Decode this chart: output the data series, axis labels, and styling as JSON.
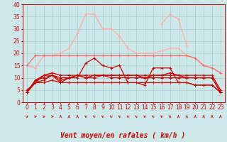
{
  "xlabel": "Vent moyen/en rafales ( km/h )",
  "x": [
    0,
    1,
    2,
    3,
    4,
    5,
    6,
    7,
    8,
    9,
    10,
    11,
    12,
    13,
    14,
    15,
    16,
    17,
    18,
    19,
    20,
    21,
    22,
    23
  ],
  "series": [
    {
      "color": "#ffaaaa",
      "lw": 0.9,
      "values": [
        15,
        14,
        19,
        19,
        20,
        22,
        28,
        36,
        36,
        30,
        30,
        27,
        22,
        20,
        20,
        20,
        21,
        22,
        22,
        19,
        18,
        15,
        14,
        12
      ]
    },
    {
      "color": "#ffaaaa",
      "lw": 0.9,
      "values": [
        null,
        null,
        null,
        null,
        null,
        null,
        null,
        null,
        null,
        null,
        null,
        null,
        null,
        null,
        null,
        null,
        32,
        36,
        34,
        23,
        null,
        null,
        null,
        null
      ]
    },
    {
      "color": "#ff6666",
      "lw": 0.9,
      "values": [
        15,
        19,
        19,
        19,
        19,
        19,
        19,
        19,
        19,
        19,
        19,
        19,
        19,
        19,
        19,
        19,
        19,
        19,
        19,
        19,
        18,
        15,
        14,
        12
      ]
    },
    {
      "color": "#cc0000",
      "lw": 0.9,
      "values": [
        4,
        8,
        11,
        11,
        8,
        10,
        10,
        16,
        18,
        15,
        14,
        15,
        8,
        8,
        7,
        14,
        14,
        14,
        8,
        8,
        7,
        7,
        7,
        4
      ]
    },
    {
      "color": "#cc0000",
      "lw": 0.9,
      "values": [
        4,
        9,
        11,
        12,
        11,
        11,
        11,
        10,
        11,
        11,
        11,
        11,
        11,
        11,
        11,
        11,
        11,
        12,
        11,
        11,
        11,
        11,
        11,
        5
      ]
    },
    {
      "color": "#cc0000",
      "lw": 0.9,
      "values": [
        5,
        8,
        9,
        11,
        9,
        10,
        11,
        11,
        11,
        11,
        11,
        11,
        11,
        11,
        10,
        11,
        11,
        11,
        11,
        10,
        10,
        10,
        10,
        4
      ]
    },
    {
      "color": "#cc0000",
      "lw": 0.9,
      "values": [
        4,
        9,
        10,
        11,
        10,
        10,
        11,
        10,
        10,
        11,
        10,
        10,
        10,
        10,
        10,
        10,
        10,
        10,
        10,
        10,
        10,
        10,
        10,
        4
      ]
    },
    {
      "color": "#cc0000",
      "lw": 0.9,
      "values": [
        4,
        8,
        8,
        9,
        8,
        8,
        8,
        8,
        8,
        8,
        8,
        8,
        8,
        8,
        8,
        8,
        8,
        8,
        8,
        8,
        7,
        7,
        7,
        4
      ]
    }
  ],
  "ylim": [
    0,
    40
  ],
  "yticks": [
    0,
    5,
    10,
    15,
    20,
    25,
    30,
    35,
    40
  ],
  "bg_color": "#cce8e8",
  "grid_color": "#aacccc",
  "xlabel_color": "#cc0000",
  "xlabel_fontsize": 7,
  "tick_fontsize": 5.5,
  "marker": "+",
  "arrow_angles": [
    45,
    60,
    60,
    70,
    0,
    0,
    0,
    315,
    315,
    315,
    315,
    315,
    315,
    315,
    315,
    315,
    315,
    0,
    0,
    0,
    0,
    0,
    0,
    0
  ]
}
